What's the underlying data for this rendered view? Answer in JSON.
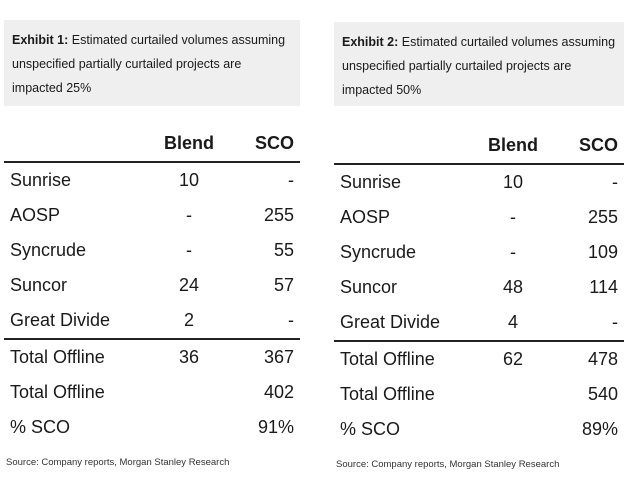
{
  "exhibit1": {
    "label": "Exhibit 1:",
    "title": "Estimated curtailed volumes assuming unspecified partially curtailed projects are impacted 25%",
    "columns": [
      "Blend",
      "SCO"
    ],
    "rows": [
      {
        "name": "Sunrise",
        "blend": "10",
        "sco": "-"
      },
      {
        "name": "AOSP",
        "blend": "-",
        "sco": "255"
      },
      {
        "name": "Syncrude",
        "blend": "-",
        "sco": "55"
      },
      {
        "name": "Suncor",
        "blend": "24",
        "sco": "57"
      },
      {
        "name": "Great Divide",
        "blend": "2",
        "sco": "-"
      },
      {
        "name": "Total Offline",
        "blend": "36",
        "sco": "367"
      },
      {
        "name": "Total Offline",
        "blend": "",
        "sco": "402"
      },
      {
        "name": "% SCO",
        "blend": "",
        "sco": "91%"
      }
    ],
    "source": "Source: Company reports, Morgan Stanley Research"
  },
  "exhibit2": {
    "label": "Exhibit 2:",
    "title": "Estimated curtailed volumes assuming unspecified partially curtailed projects are impacted 50%",
    "columns": [
      "Blend",
      "SCO"
    ],
    "rows": [
      {
        "name": "Sunrise",
        "blend": "10",
        "sco": "-"
      },
      {
        "name": "AOSP",
        "blend": "-",
        "sco": "255"
      },
      {
        "name": "Syncrude",
        "blend": "-",
        "sco": "109"
      },
      {
        "name": "Suncor",
        "blend": "48",
        "sco": "114"
      },
      {
        "name": "Great Divide",
        "blend": "4",
        "sco": "-"
      },
      {
        "name": "Total Offline",
        "blend": "62",
        "sco": "478"
      },
      {
        "name": "Total Offline",
        "blend": "",
        "sco": "540"
      },
      {
        "name": "% SCO",
        "blend": "",
        "sco": "89%"
      }
    ],
    "source": "Source: Company reports, Morgan Stanley Research"
  }
}
